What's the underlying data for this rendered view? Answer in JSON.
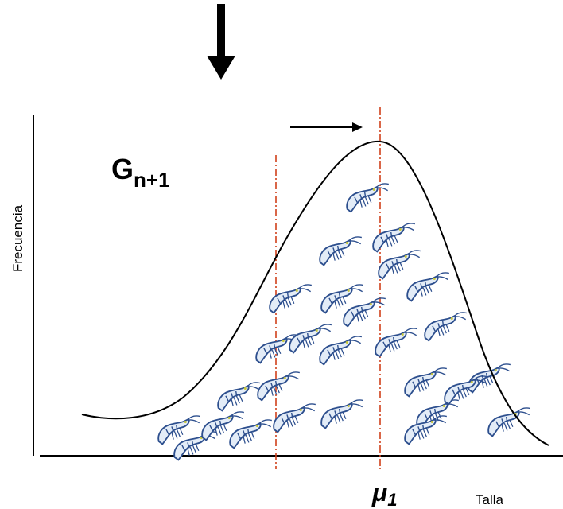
{
  "group_label": {
    "main": "G",
    "subscript": "n+1"
  },
  "y_axis_label": "Frecuencia",
  "x_axis_label": "Talla",
  "mean_label": {
    "main": "μ",
    "subscript": "1"
  }
}
